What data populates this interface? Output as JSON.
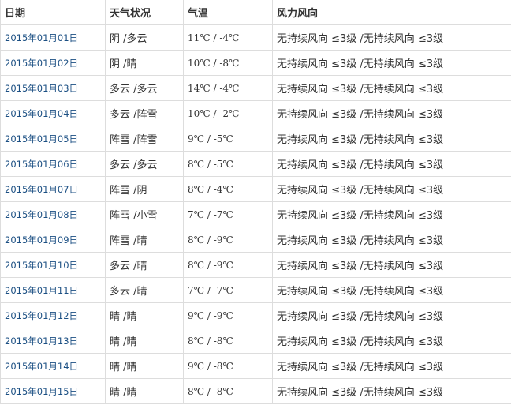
{
  "table": {
    "headers": [
      "日期",
      "天气状况",
      "气温",
      "风力风向"
    ],
    "rows": [
      {
        "date": "2015年01月01日",
        "weather": "阴 /多云",
        "temp": "11℃ / -4℃",
        "wind": "无持续风向 ≤3级 /无持续风向 ≤3级"
      },
      {
        "date": "2015年01月02日",
        "weather": "阴 /晴",
        "temp": "10℃ / -8℃",
        "wind": "无持续风向 ≤3级 /无持续风向 ≤3级"
      },
      {
        "date": "2015年01月03日",
        "weather": "多云 /多云",
        "temp": "14℃ / -4℃",
        "wind": "无持续风向 ≤3级 /无持续风向 ≤3级"
      },
      {
        "date": "2015年01月04日",
        "weather": "多云 /阵雪",
        "temp": "10℃ / -2℃",
        "wind": "无持续风向 ≤3级 /无持续风向 ≤3级"
      },
      {
        "date": "2015年01月05日",
        "weather": "阵雪 /阵雪",
        "temp": "9℃ / -5℃",
        "wind": "无持续风向 ≤3级 /无持续风向 ≤3级"
      },
      {
        "date": "2015年01月06日",
        "weather": "多云 /多云",
        "temp": "8℃ / -5℃",
        "wind": "无持续风向 ≤3级 /无持续风向 ≤3级"
      },
      {
        "date": "2015年01月07日",
        "weather": "阵雪 /阴",
        "temp": "8℃ / -4℃",
        "wind": "无持续风向 ≤3级 /无持续风向 ≤3级"
      },
      {
        "date": "2015年01月08日",
        "weather": "阵雪 /小雪",
        "temp": "7℃ / -7℃",
        "wind": "无持续风向 ≤3级 /无持续风向 ≤3级"
      },
      {
        "date": "2015年01月09日",
        "weather": "阵雪 /晴",
        "temp": "8℃ / -9℃",
        "wind": "无持续风向 ≤3级 /无持续风向 ≤3级"
      },
      {
        "date": "2015年01月10日",
        "weather": "多云 /晴",
        "temp": "8℃ / -9℃",
        "wind": "无持续风向 ≤3级 /无持续风向 ≤3级"
      },
      {
        "date": "2015年01月11日",
        "weather": "多云 /晴",
        "temp": "7℃ / -7℃",
        "wind": "无持续风向 ≤3级 /无持续风向 ≤3级"
      },
      {
        "date": "2015年01月12日",
        "weather": "晴 /晴",
        "temp": "9℃ / -9℃",
        "wind": "无持续风向 ≤3级 /无持续风向 ≤3级"
      },
      {
        "date": "2015年01月13日",
        "weather": "晴 /晴",
        "temp": "8℃ / -8℃",
        "wind": "无持续风向 ≤3级 /无持续风向 ≤3级"
      },
      {
        "date": "2015年01月14日",
        "weather": "晴 /晴",
        "temp": "9℃ / -8℃",
        "wind": "无持续风向 ≤3级 /无持续风向 ≤3级"
      },
      {
        "date": "2015年01月15日",
        "weather": "晴 /晴",
        "temp": "8℃ / -8℃",
        "wind": "无持续风向 ≤3级 /无持续风向 ≤3级"
      }
    ]
  },
  "colors": {
    "link": "#1b4f83",
    "border": "#dddddd",
    "text": "#333333"
  }
}
